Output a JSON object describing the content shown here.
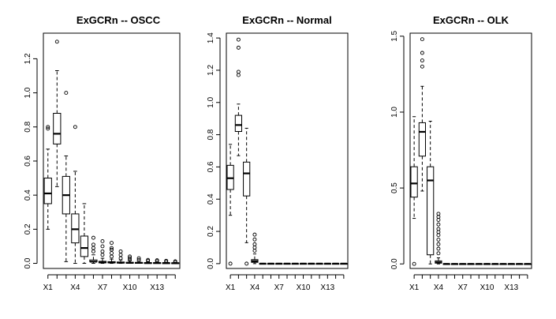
{
  "chart_data": [
    {
      "type": "boxplot",
      "title": "ExGCRn -- OSCC",
      "ylim": [
        -0.03,
        1.35
      ],
      "y_ticks": [
        0.0,
        0.2,
        0.4,
        0.6,
        0.8,
        1.0,
        1.2
      ],
      "y_tick_labels": [
        "0.0",
        "0.2",
        "0.4",
        "0.6",
        "0.8",
        "1.0",
        "1.2"
      ],
      "categories": [
        "X1",
        "X2",
        "X3",
        "X4",
        "X5",
        "X6",
        "X7",
        "X8",
        "X9",
        "X10",
        "X11",
        "X12",
        "X13",
        "X14",
        "X15"
      ],
      "x_tick_labels": [
        "X1",
        "X4",
        "X7",
        "X10",
        "X13"
      ],
      "boxes": [
        {
          "name": "X1",
          "lo": 0.2,
          "q1": 0.35,
          "med": 0.41,
          "q3": 0.5,
          "hi": 0.67,
          "out": [
            0.79,
            0.8
          ]
        },
        {
          "name": "X2",
          "lo": 0.45,
          "q1": 0.7,
          "med": 0.76,
          "q3": 0.88,
          "hi": 1.13,
          "out": [
            1.3
          ]
        },
        {
          "name": "X3",
          "lo": 0.01,
          "q1": 0.29,
          "med": 0.4,
          "q3": 0.51,
          "hi": 0.63,
          "out": [
            1.0
          ]
        },
        {
          "name": "X4",
          "lo": 0.0,
          "q1": 0.12,
          "med": 0.2,
          "q3": 0.29,
          "hi": 0.54,
          "out": [
            0.8
          ]
        },
        {
          "name": "X5",
          "lo": 0.0,
          "q1": 0.04,
          "med": 0.09,
          "q3": 0.16,
          "hi": 0.35,
          "out": []
        },
        {
          "name": "X6",
          "lo": 0.0,
          "q1": 0.01,
          "med": 0.01,
          "q3": 0.02,
          "hi": 0.05,
          "out": [
            0.07,
            0.09,
            0.11,
            0.15
          ]
        },
        {
          "name": "X7",
          "lo": 0.0,
          "q1": 0.003,
          "med": 0.006,
          "q3": 0.012,
          "hi": 0.03,
          "out": [
            0.05,
            0.07,
            0.1,
            0.13
          ]
        },
        {
          "name": "X8",
          "lo": 0.0,
          "q1": 0.003,
          "med": 0.005,
          "q3": 0.01,
          "hi": 0.025,
          "out": [
            0.04,
            0.06,
            0.08,
            0.09,
            0.12
          ]
        },
        {
          "name": "X9",
          "lo": 0.0,
          "q1": 0.002,
          "med": 0.004,
          "q3": 0.008,
          "hi": 0.02,
          "out": [
            0.03,
            0.05,
            0.07
          ]
        },
        {
          "name": "X10",
          "lo": 0.0,
          "q1": 0.002,
          "med": 0.003,
          "q3": 0.006,
          "hi": 0.015,
          "out": [
            0.02,
            0.03,
            0.04
          ]
        },
        {
          "name": "X11",
          "lo": 0.0,
          "q1": 0.001,
          "med": 0.003,
          "q3": 0.005,
          "hi": 0.012,
          "out": [
            0.02,
            0.03
          ]
        },
        {
          "name": "X12",
          "lo": 0.0,
          "q1": 0.001,
          "med": 0.002,
          "q3": 0.004,
          "hi": 0.01,
          "out": [
            0.015,
            0.02
          ]
        },
        {
          "name": "X13",
          "lo": 0.0,
          "q1": 0.001,
          "med": 0.002,
          "q3": 0.004,
          "hi": 0.009,
          "out": [
            0.012,
            0.018
          ]
        },
        {
          "name": "X14",
          "lo": 0.0,
          "q1": 0.001,
          "med": 0.002,
          "q3": 0.003,
          "hi": 0.007,
          "out": [
            0.01,
            0.015
          ]
        },
        {
          "name": "X15",
          "lo": 0.0,
          "q1": 0.001,
          "med": 0.001,
          "q3": 0.003,
          "hi": 0.006,
          "out": [
            0.008,
            0.012
          ]
        }
      ]
    },
    {
      "type": "boxplot",
      "title": "ExGCRn -- Normal",
      "ylim": [
        -0.03,
        1.43
      ],
      "y_ticks": [
        0.0,
        0.2,
        0.4,
        0.6,
        0.8,
        1.0,
        1.2,
        1.4
      ],
      "y_tick_labels": [
        "0.0",
        "0.2",
        "0.4",
        "0.6",
        "0.8",
        "1.0",
        "1.2",
        "1.4"
      ],
      "categories": [
        "X1",
        "X2",
        "X3",
        "X4",
        "X5",
        "X6",
        "X7",
        "X8",
        "X9",
        "X10",
        "X11",
        "X12",
        "X13",
        "X14",
        "X15"
      ],
      "x_tick_labels": [
        "X1",
        "X4",
        "X7",
        "X10",
        "X13"
      ],
      "boxes": [
        {
          "name": "X1",
          "lo": 0.3,
          "q1": 0.46,
          "med": 0.53,
          "q3": 0.61,
          "hi": 0.74,
          "out": [
            0.0
          ]
        },
        {
          "name": "X2",
          "lo": 0.67,
          "q1": 0.82,
          "med": 0.86,
          "q3": 0.92,
          "hi": 0.99,
          "out": [
            1.17,
            1.19,
            1.34,
            1.39
          ]
        },
        {
          "name": "X3",
          "lo": 0.13,
          "q1": 0.42,
          "med": 0.56,
          "q3": 0.63,
          "hi": 0.84,
          "out": [
            0.0
          ]
        },
        {
          "name": "X4",
          "lo": 0.0,
          "q1": 0.008,
          "med": 0.015,
          "q3": 0.025,
          "hi": 0.06,
          "out": [
            0.08,
            0.1,
            0.12,
            0.15,
            0.18
          ]
        },
        {
          "name": "X5",
          "lo": 0.0,
          "q1": 0.0,
          "med": 0.0,
          "q3": 0.001,
          "hi": 0.002,
          "out": []
        },
        {
          "name": "X6",
          "lo": 0.0,
          "q1": 0.0,
          "med": 0.0,
          "q3": 0.001,
          "hi": 0.002,
          "out": []
        },
        {
          "name": "X7",
          "lo": 0.0,
          "q1": 0.0,
          "med": 0.0,
          "q3": 0.001,
          "hi": 0.002,
          "out": []
        },
        {
          "name": "X8",
          "lo": 0.0,
          "q1": 0.0,
          "med": 0.0,
          "q3": 0.001,
          "hi": 0.002,
          "out": []
        },
        {
          "name": "X9",
          "lo": 0.0,
          "q1": 0.0,
          "med": 0.0,
          "q3": 0.001,
          "hi": 0.002,
          "out": []
        },
        {
          "name": "X10",
          "lo": 0.0,
          "q1": 0.0,
          "med": 0.0,
          "q3": 0.001,
          "hi": 0.002,
          "out": []
        },
        {
          "name": "X11",
          "lo": 0.0,
          "q1": 0.0,
          "med": 0.0,
          "q3": 0.001,
          "hi": 0.002,
          "out": []
        },
        {
          "name": "X12",
          "lo": 0.0,
          "q1": 0.0,
          "med": 0.0,
          "q3": 0.001,
          "hi": 0.002,
          "out": []
        },
        {
          "name": "X13",
          "lo": 0.0,
          "q1": 0.0,
          "med": 0.0,
          "q3": 0.001,
          "hi": 0.002,
          "out": []
        },
        {
          "name": "X14",
          "lo": 0.0,
          "q1": 0.0,
          "med": 0.0,
          "q3": 0.001,
          "hi": 0.002,
          "out": []
        },
        {
          "name": "X15",
          "lo": 0.0,
          "q1": 0.0,
          "med": 0.0,
          "q3": 0.001,
          "hi": 0.002,
          "out": []
        }
      ]
    },
    {
      "type": "boxplot",
      "title": "ExGCRn -- OLK",
      "ylim": [
        -0.03,
        1.52
      ],
      "y_ticks": [
        0.0,
        0.5,
        1.0,
        1.5
      ],
      "y_tick_labels": [
        "0.0",
        "0.5",
        "1.0",
        "1.5"
      ],
      "categories": [
        "X1",
        "X2",
        "X3",
        "X4",
        "X5",
        "X6",
        "X7",
        "X8",
        "X9",
        "X10",
        "X11",
        "X12",
        "X13",
        "X14",
        "X15"
      ],
      "x_tick_labels": [
        "X1",
        "X4",
        "X7",
        "X10",
        "X13"
      ],
      "boxes": [
        {
          "name": "X1",
          "lo": 0.3,
          "q1": 0.44,
          "med": 0.53,
          "q3": 0.64,
          "hi": 0.97,
          "out": [
            0.0
          ]
        },
        {
          "name": "X2",
          "lo": 0.48,
          "q1": 0.71,
          "med": 0.87,
          "q3": 0.93,
          "hi": 1.17,
          "out": [
            1.3,
            1.34,
            1.39,
            1.48
          ]
        },
        {
          "name": "X3",
          "lo": 0.0,
          "q1": 0.06,
          "med": 0.55,
          "q3": 0.64,
          "hi": 0.94,
          "out": []
        },
        {
          "name": "X4",
          "lo": 0.0,
          "q1": 0.005,
          "med": 0.01,
          "q3": 0.02,
          "hi": 0.04,
          "out": [
            0.07,
            0.1,
            0.13,
            0.16,
            0.19,
            0.21,
            0.23,
            0.26,
            0.29,
            0.31,
            0.33
          ]
        },
        {
          "name": "X5",
          "lo": 0.0,
          "q1": 0.0,
          "med": 0.0,
          "q3": 0.001,
          "hi": 0.002,
          "out": []
        },
        {
          "name": "X6",
          "lo": 0.0,
          "q1": 0.0,
          "med": 0.0,
          "q3": 0.001,
          "hi": 0.002,
          "out": []
        },
        {
          "name": "X7",
          "lo": 0.0,
          "q1": 0.0,
          "med": 0.0,
          "q3": 0.001,
          "hi": 0.002,
          "out": []
        },
        {
          "name": "X8",
          "lo": 0.0,
          "q1": 0.0,
          "med": 0.0,
          "q3": 0.001,
          "hi": 0.002,
          "out": []
        },
        {
          "name": "X9",
          "lo": 0.0,
          "q1": 0.0,
          "med": 0.0,
          "q3": 0.001,
          "hi": 0.002,
          "out": []
        },
        {
          "name": "X10",
          "lo": 0.0,
          "q1": 0.0,
          "med": 0.0,
          "q3": 0.001,
          "hi": 0.002,
          "out": []
        },
        {
          "name": "X11",
          "lo": 0.0,
          "q1": 0.0,
          "med": 0.0,
          "q3": 0.001,
          "hi": 0.002,
          "out": []
        },
        {
          "name": "X12",
          "lo": 0.0,
          "q1": 0.0,
          "med": 0.0,
          "q3": 0.001,
          "hi": 0.002,
          "out": []
        },
        {
          "name": "X13",
          "lo": 0.0,
          "q1": 0.0,
          "med": 0.0,
          "q3": 0.001,
          "hi": 0.002,
          "out": []
        },
        {
          "name": "X14",
          "lo": 0.0,
          "q1": 0.0,
          "med": 0.0,
          "q3": 0.001,
          "hi": 0.002,
          "out": []
        },
        {
          "name": "X15",
          "lo": 0.0,
          "q1": 0.0,
          "med": 0.0,
          "q3": 0.001,
          "hi": 0.002,
          "out": []
        }
      ]
    }
  ]
}
